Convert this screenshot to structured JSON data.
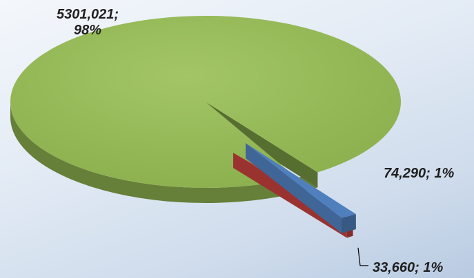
{
  "chart_data": {
    "type": "pie",
    "title": "",
    "slices": [
      {
        "value": 5301021,
        "value_text": "5301,021",
        "percent_text": "98%",
        "color": "#8db14f"
      },
      {
        "value": 74290,
        "value_text": "74,290",
        "percent_text": "1%",
        "color": "#4f7fbd"
      },
      {
        "value": 33660,
        "value_text": "33,660",
        "percent_text": "1%",
        "color": "#c0403c"
      }
    ],
    "exploded_slices": [
      1,
      2
    ],
    "legend": false
  }
}
